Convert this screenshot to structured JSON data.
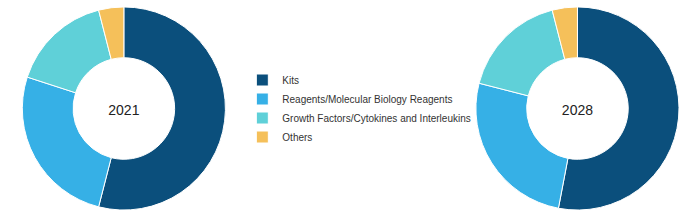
{
  "chart_data": [
    {
      "type": "pie",
      "title": "2021",
      "categories": [
        "Kits",
        "Reagents/Molecular Biology Reagents",
        "Growth Factors/Cytokines and Interleukins",
        "Others"
      ],
      "values": [
        54,
        26,
        16,
        4
      ],
      "colors": [
        "#0b4f7c",
        "#36b0e6",
        "#5fd0d8",
        "#f5c05a"
      ]
    },
    {
      "type": "pie",
      "title": "2028",
      "categories": [
        "Kits",
        "Reagents/Molecular Biology Reagents",
        "Growth Factors/Cytokines and Interleukins",
        "Others"
      ],
      "values": [
        53,
        26,
        17,
        4
      ],
      "colors": [
        "#0b4f7c",
        "#36b0e6",
        "#5fd0d8",
        "#f5c05a"
      ]
    }
  ]
}
